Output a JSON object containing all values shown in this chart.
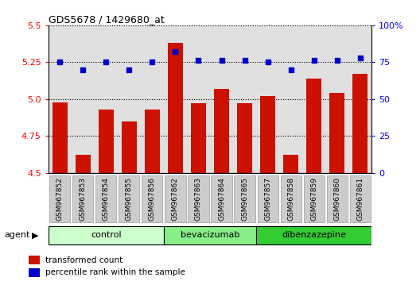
{
  "title": "GDS5678 / 1429680_at",
  "samples": [
    "GSM967852",
    "GSM967853",
    "GSM967854",
    "GSM967855",
    "GSM967856",
    "GSM967862",
    "GSM967863",
    "GSM967864",
    "GSM967865",
    "GSM967857",
    "GSM967858",
    "GSM967859",
    "GSM967860",
    "GSM967861"
  ],
  "bar_values": [
    4.98,
    4.62,
    4.93,
    4.85,
    4.93,
    5.38,
    4.97,
    5.07,
    4.97,
    5.02,
    4.62,
    5.14,
    5.04,
    5.17
  ],
  "dot_values": [
    75,
    70,
    75,
    70,
    75,
    82,
    76,
    76,
    76,
    75,
    70,
    76,
    76,
    78
  ],
  "groups": [
    {
      "label": "control",
      "start": 0,
      "end": 5,
      "color": "#ccffcc"
    },
    {
      "label": "bevacizumab",
      "start": 5,
      "end": 9,
      "color": "#88ee88"
    },
    {
      "label": "dibenzazepine",
      "start": 9,
      "end": 14,
      "color": "#33cc33"
    }
  ],
  "ylim_left": [
    4.5,
    5.5
  ],
  "ylim_right": [
    0,
    100
  ],
  "yticks_left": [
    4.5,
    4.75,
    5.0,
    5.25,
    5.5
  ],
  "yticks_right": [
    0,
    25,
    50,
    75,
    100
  ],
  "bar_color": "#cc1100",
  "dot_color": "#0000cc",
  "plot_bg_color": "#e0e0e0",
  "xtick_box_color": "#cccccc",
  "legend_bar_label": "transformed count",
  "legend_dot_label": "percentile rank within the sample",
  "agent_label": "agent"
}
